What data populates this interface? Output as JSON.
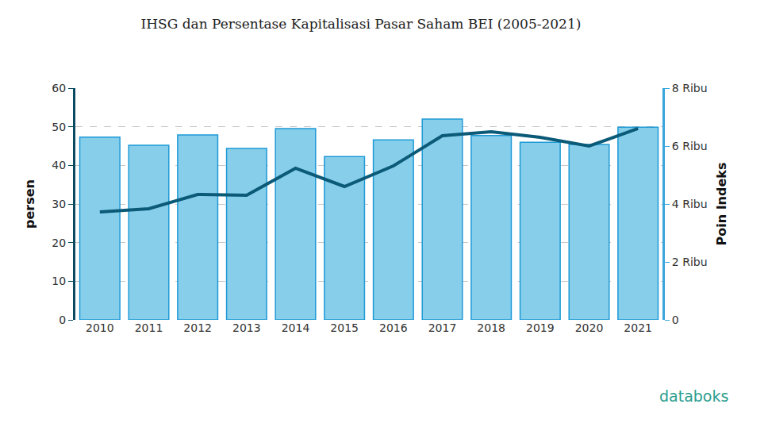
{
  "chart_data": {
    "type": "bar",
    "title": "IHSG dan Persentase Kapitalisasi Pasar Saham BEI (2005-2021)",
    "y_label": "persen",
    "y2_label": "Poin Indeks",
    "categories": [
      "2010",
      "2011",
      "2012",
      "2013",
      "2014",
      "2015",
      "2016",
      "2017",
      "2018",
      "2019",
      "2020",
      "2021"
    ],
    "series": [
      {
        "type": "bar",
        "color": "#87ceeb",
        "values": [
          47.3,
          45.2,
          47.9,
          44.4,
          49.5,
          42.3,
          46.6,
          52.0,
          47.7,
          46.0,
          45.4,
          49.9
        ]
      },
      {
        "type": "line",
        "axis": "y2",
        "color": "#0a5a78",
        "values": [
          3726,
          3836,
          4329,
          4301,
          5233,
          4603,
          5315,
          6356,
          6493,
          6301,
          6000,
          6603
        ]
      }
    ],
    "ylim": [
      0,
      60
    ],
    "yticks": [
      0,
      10,
      20,
      30,
      40,
      50,
      60
    ],
    "y2lim": [
      0,
      8000
    ],
    "y2ticks": [
      0,
      {
        "value": 2000,
        "label": "2 Ribu"
      },
      {
        "value": 4000,
        "label": "4 Ribu"
      },
      {
        "value": 6000,
        "label": "6 Ribu"
      },
      {
        "value": 8000,
        "label": "8 Ribu"
      }
    ],
    "grid": true,
    "annotations": [
      "databoks"
    ]
  }
}
